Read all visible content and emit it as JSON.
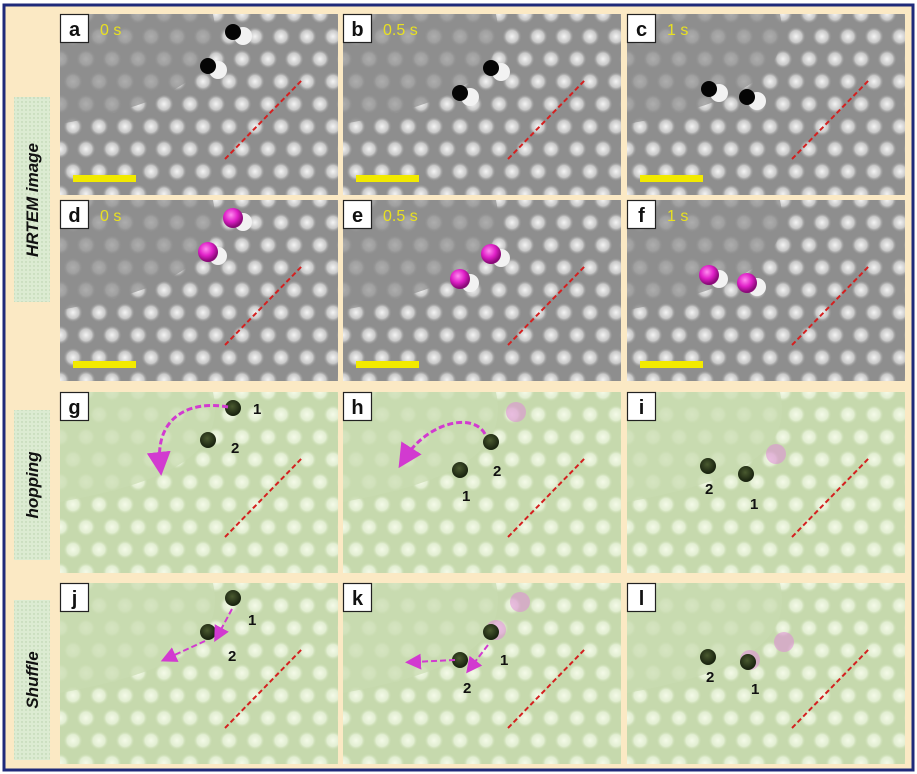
{
  "colors": {
    "frame": "#1f2a7a",
    "background": "#fbe9c4",
    "row_label_box": "#dcebd2",
    "time_text": "#e8e020",
    "scale_bar": "#f2ea00",
    "boundary_line": "#d42020",
    "atom_marker": "#e020c8",
    "arrow": "#d23ad0"
  },
  "row_labels": [
    "HRTEM image",
    "hopping",
    "Shuffle"
  ],
  "panels": [
    {
      "label": "a",
      "time": "0 s"
    },
    {
      "label": "b",
      "time": "0.5 s"
    },
    {
      "label": "c",
      "time": "1 s"
    },
    {
      "label": "d",
      "time": "0 s"
    },
    {
      "label": "e",
      "time": "0.5 s"
    },
    {
      "label": "f",
      "time": "1 s"
    },
    {
      "label": "g",
      "numbers": [
        "1",
        "2"
      ]
    },
    {
      "label": "h",
      "numbers": [
        "2",
        "1"
      ]
    },
    {
      "label": "i",
      "numbers": [
        "2",
        "1"
      ]
    },
    {
      "label": "j",
      "numbers": [
        "1",
        "2"
      ]
    },
    {
      "label": "k",
      "numbers": [
        "1",
        "2"
      ]
    },
    {
      "label": "l",
      "numbers": [
        "2",
        "1"
      ]
    }
  ]
}
